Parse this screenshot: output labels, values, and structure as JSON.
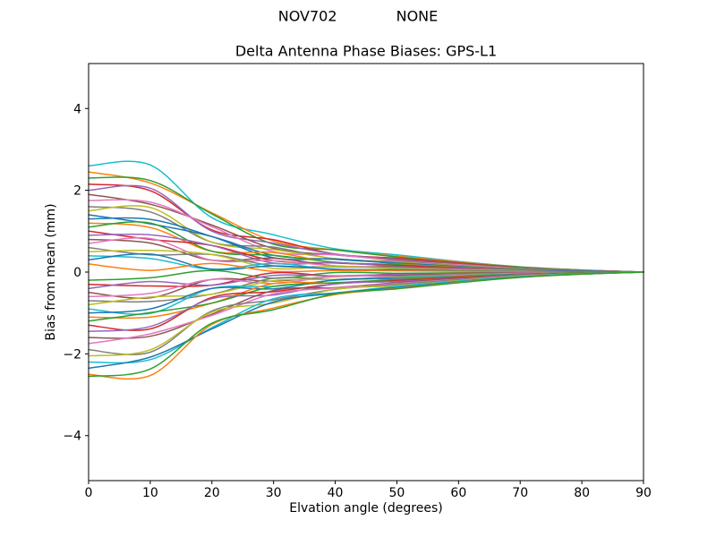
{
  "window": {
    "suptitle": "NOV702             NONE"
  },
  "chart_data": {
    "type": "line",
    "title": "Delta Antenna Phase Biases: GPS-L1",
    "xlabel": "Elvation angle (degrees)",
    "ylabel": "Bias from mean (mm)",
    "x": [
      0,
      10,
      20,
      30,
      40,
      50,
      60,
      70,
      80,
      90
    ],
    "xlim": [
      0,
      90
    ],
    "ylim": [
      -5.1,
      5.1
    ],
    "x_ticks": [
      0,
      10,
      20,
      30,
      40,
      50,
      60,
      70,
      80,
      90
    ],
    "y_ticks": [
      -4,
      -2,
      0,
      2,
      4
    ],
    "grid": false,
    "legend": "none",
    "axis_color": "#000000",
    "color_cycle": [
      "#1f77b4",
      "#ff7f0e",
      "#2ca02c",
      "#d62728",
      "#9467bd",
      "#8c564b",
      "#e377c2",
      "#7f7f7f",
      "#bcbd22",
      "#17becf"
    ],
    "series": [
      {
        "color": "#17becf",
        "values": [
          2.6,
          2.62,
          1.33,
          0.91,
          0.57,
          0.42,
          0.26,
          0.13,
          0.05,
          0
        ]
      },
      {
        "color": "#ff7f0e",
        "values": [
          2.45,
          2.18,
          1.45,
          0.76,
          0.54,
          0.39,
          0.25,
          0.12,
          0.05,
          0
        ]
      },
      {
        "color": "#2ca02c",
        "values": [
          2.3,
          2.24,
          1.42,
          0.68,
          0.54,
          0.37,
          0.23,
          0.12,
          0.05,
          0
        ]
      },
      {
        "color": "#d62728",
        "values": [
          2.15,
          1.99,
          1.03,
          0.79,
          0.44,
          0.34,
          0.22,
          0.11,
          0.04,
          0
        ]
      },
      {
        "color": "#9467bd",
        "values": [
          2.0,
          2.05,
          1.0,
          0.71,
          0.44,
          0.32,
          0.2,
          0.1,
          0.04,
          0
        ]
      },
      {
        "color": "#8c564b",
        "values": [
          1.9,
          1.66,
          1.15,
          0.58,
          0.42,
          0.3,
          0.19,
          0.1,
          0.04,
          0
        ]
      },
      {
        "color": "#e377c2",
        "values": [
          1.75,
          1.71,
          1.11,
          0.5,
          0.42,
          0.28,
          0.18,
          0.09,
          0.04,
          0
        ]
      },
      {
        "color": "#7f7f7f",
        "values": [
          1.6,
          1.47,
          0.73,
          0.61,
          0.32,
          0.26,
          0.16,
          0.08,
          0.03,
          0
        ]
      },
      {
        "color": "#bcbd22",
        "values": [
          1.5,
          1.58,
          0.73,
          0.55,
          0.33,
          0.24,
          0.15,
          0.08,
          0.03,
          0
        ]
      },
      {
        "color": "#1f77b4",
        "values": [
          1.4,
          1.18,
          0.87,
          0.41,
          0.31,
          0.22,
          0.14,
          0.07,
          0.03,
          0
        ]
      },
      {
        "color": "#1f77b4",
        "values": [
          1.3,
          1.29,
          0.87,
          0.35,
          0.32,
          0.21,
          0.13,
          0.07,
          0.03,
          0
        ]
      },
      {
        "color": "#ff7f0e",
        "values": [
          1.2,
          1.09,
          0.51,
          0.48,
          0.23,
          0.19,
          0.12,
          0.06,
          0.02,
          0
        ]
      },
      {
        "color": "#2ca02c",
        "values": [
          1.1,
          1.2,
          0.51,
          0.41,
          0.24,
          0.18,
          0.11,
          0.06,
          0.02,
          0
        ]
      },
      {
        "color": "#d62728",
        "values": [
          1.0,
          0.8,
          0.65,
          0.28,
          0.22,
          0.16,
          0.1,
          0.05,
          0.02,
          0
        ]
      },
      {
        "color": "#9467bd",
        "values": [
          0.9,
          0.91,
          0.65,
          0.22,
          0.23,
          0.14,
          0.09,
          0.05,
          0.02,
          0
        ]
      },
      {
        "color": "#8c564b",
        "values": [
          0.8,
          0.71,
          0.29,
          0.34,
          0.15,
          0.13,
          0.08,
          0.04,
          0.02,
          0
        ]
      },
      {
        "color": "#e377c2",
        "values": [
          0.7,
          0.82,
          0.29,
          0.28,
          0.15,
          0.11,
          0.07,
          0.04,
          0.01,
          0
        ]
      },
      {
        "color": "#7f7f7f",
        "values": [
          0.6,
          0.42,
          0.43,
          0.15,
          0.13,
          0.1,
          0.06,
          0.03,
          0.01,
          0
        ]
      },
      {
        "color": "#bcbd22",
        "values": [
          0.5,
          0.53,
          0.43,
          0.09,
          0.14,
          0.08,
          0.05,
          0.03,
          0.01,
          0
        ]
      },
      {
        "color": "#17becf",
        "values": [
          0.4,
          0.33,
          0.07,
          0.21,
          0.06,
          0.06,
          0.04,
          0.02,
          0.01,
          0
        ]
      },
      {
        "color": "#1f77b4",
        "values": [
          0.3,
          0.44,
          0.07,
          0.15,
          0.07,
          0.05,
          0.03,
          0.02,
          0.01,
          0
        ]
      },
      {
        "color": "#ff7f0e",
        "values": [
          0.2,
          0.04,
          0.21,
          0.02,
          0.04,
          0.03,
          0.02,
          0.01,
          0,
          0
        ]
      },
      {
        "color": "#2ca02c",
        "values": [
          -0.2,
          -0.14,
          0.04,
          -0.15,
          -0.01,
          -0.03,
          -0.02,
          -0.01,
          0,
          0
        ]
      },
      {
        "color": "#d62728",
        "values": [
          -0.3,
          -0.34,
          -0.32,
          -0.02,
          -0.1,
          -0.05,
          -0.03,
          -0.02,
          -0.01,
          0
        ]
      },
      {
        "color": "#9467bd",
        "values": [
          -0.4,
          -0.23,
          -0.32,
          -0.08,
          -0.09,
          -0.06,
          -0.04,
          -0.02,
          -0.01,
          0
        ]
      },
      {
        "color": "#8c564b",
        "values": [
          -0.5,
          -0.63,
          -0.18,
          -0.22,
          -0.11,
          -0.08,
          -0.05,
          -0.03,
          -0.01,
          0
        ]
      },
      {
        "color": "#e377c2",
        "values": [
          -0.6,
          -0.52,
          -0.18,
          -0.28,
          -0.1,
          -0.1,
          -0.06,
          -0.03,
          -0.01,
          0
        ]
      },
      {
        "color": "#7f7f7f",
        "values": [
          -0.7,
          -0.72,
          -0.54,
          -0.15,
          -0.18,
          -0.11,
          -0.07,
          -0.04,
          -0.01,
          0
        ]
      },
      {
        "color": "#bcbd22",
        "values": [
          -0.8,
          -0.61,
          -0.54,
          -0.21,
          -0.18,
          -0.13,
          -0.08,
          -0.04,
          -0.02,
          0
        ]
      },
      {
        "color": "#17becf",
        "values": [
          -0.9,
          -1.01,
          -0.4,
          -0.35,
          -0.2,
          -0.14,
          -0.09,
          -0.05,
          -0.02,
          0
        ]
      },
      {
        "color": "#1f77b4",
        "values": [
          -1.0,
          -0.9,
          -0.4,
          -0.41,
          -0.19,
          -0.16,
          -0.1,
          -0.05,
          -0.02,
          0
        ]
      },
      {
        "color": "#ff7f0e",
        "values": [
          -1.1,
          -1.1,
          -0.76,
          -0.28,
          -0.27,
          -0.18,
          -0.11,
          -0.06,
          -0.02,
          0
        ]
      },
      {
        "color": "#2ca02c",
        "values": [
          -1.2,
          -0.99,
          -0.76,
          -0.35,
          -0.26,
          -0.19,
          -0.12,
          -0.06,
          -0.02,
          0
        ]
      },
      {
        "color": "#d62728",
        "values": [
          -1.3,
          -1.39,
          -0.62,
          -0.48,
          -0.29,
          -0.21,
          -0.13,
          -0.07,
          -0.03,
          0
        ]
      },
      {
        "color": "#9467bd",
        "values": [
          -1.45,
          -1.33,
          -0.65,
          -0.56,
          -0.29,
          -0.23,
          -0.15,
          -0.07,
          -0.03,
          0
        ]
      },
      {
        "color": "#8c564b",
        "values": [
          -1.6,
          -1.57,
          -1.03,
          -0.45,
          -0.38,
          -0.26,
          -0.16,
          -0.08,
          -0.03,
          0
        ]
      },
      {
        "color": "#e377c2",
        "values": [
          -1.75,
          -1.51,
          -1.06,
          -0.53,
          -0.39,
          -0.28,
          -0.18,
          -0.09,
          -0.04,
          0
        ]
      },
      {
        "color": "#7f7f7f",
        "values": [
          -1.9,
          -1.96,
          -0.95,
          -0.68,
          -0.42,
          -0.3,
          -0.19,
          -0.1,
          -0.04,
          0
        ]
      },
      {
        "color": "#bcbd22",
        "values": [
          -2.05,
          -1.9,
          -0.98,
          -0.76,
          -0.42,
          -0.33,
          -0.21,
          -0.1,
          -0.04,
          0
        ]
      },
      {
        "color": "#17becf",
        "values": [
          -2.2,
          -2.14,
          -1.36,
          -0.65,
          -0.51,
          -0.35,
          -0.22,
          -0.11,
          -0.04,
          0
        ]
      },
      {
        "color": "#1f77b4",
        "values": [
          -2.35,
          -2.08,
          -1.39,
          -0.73,
          -0.52,
          -0.38,
          -0.24,
          -0.12,
          -0.05,
          0
        ]
      },
      {
        "color": "#ff7f0e",
        "values": [
          -2.5,
          -2.53,
          -1.28,
          -0.88,
          -0.55,
          -0.4,
          -0.25,
          -0.13,
          -0.05,
          0
        ]
      },
      {
        "color": "#2ca02c",
        "values": [
          -2.55,
          -2.37,
          -1.25,
          -0.92,
          -0.53,
          -0.41,
          -0.26,
          -0.13,
          -0.05,
          0
        ]
      }
    ]
  }
}
